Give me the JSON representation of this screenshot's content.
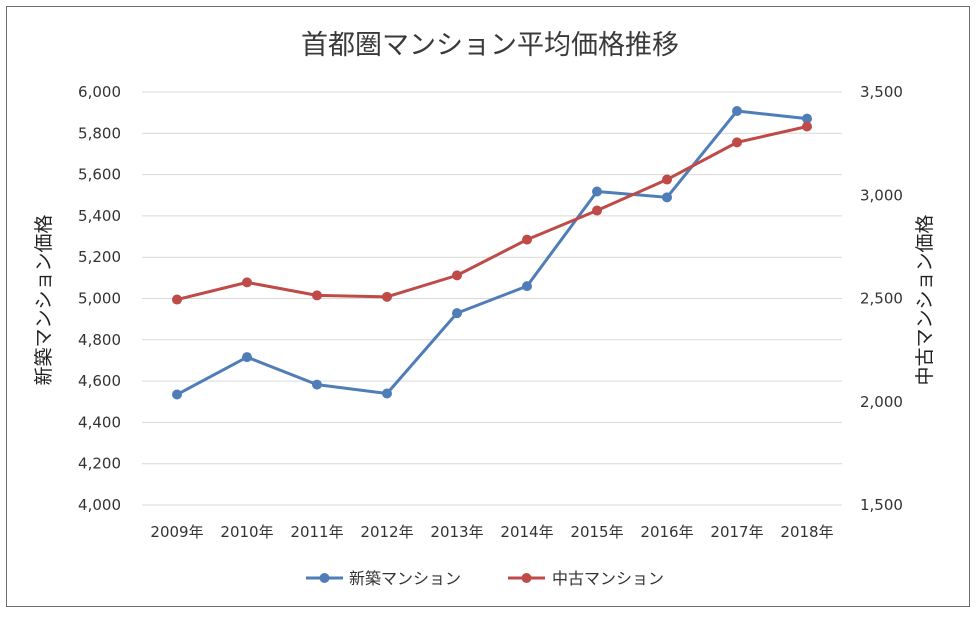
{
  "chart_data": {
    "type": "line",
    "title": "首都圏マンション平均価格推移",
    "categories": [
      "2009年",
      "2010年",
      "2011年",
      "2012年",
      "2013年",
      "2014年",
      "2015年",
      "2016年",
      "2017年",
      "2018年"
    ],
    "series": [
      {
        "name": "新築マンション",
        "axis": "left",
        "color": "#4f7db8",
        "values": [
          4535,
          4716,
          4583,
          4540,
          4929,
          5060,
          5518,
          5490,
          5908,
          5871
        ]
      },
      {
        "name": "中古マンション",
        "axis": "right",
        "color": "#be4b48",
        "values": [
          2495,
          2578,
          2515,
          2508,
          2612,
          2785,
          2926,
          3076,
          3256,
          3333
        ]
      }
    ],
    "ylabel": "新築マンション価格",
    "y2label": "中古マンション価格",
    "ylim": [
      4000,
      6000
    ],
    "y2lim": [
      1500,
      3500
    ],
    "yticks": [
      "4,000",
      "4,200",
      "4,400",
      "4,600",
      "4,800",
      "5,000",
      "5,200",
      "5,400",
      "5,600",
      "5,800",
      "6,000"
    ],
    "y2ticks": [
      "1,500",
      "2,000",
      "2,500",
      "3,000",
      "3,500"
    ],
    "grid": true,
    "legend": "bottom"
  }
}
